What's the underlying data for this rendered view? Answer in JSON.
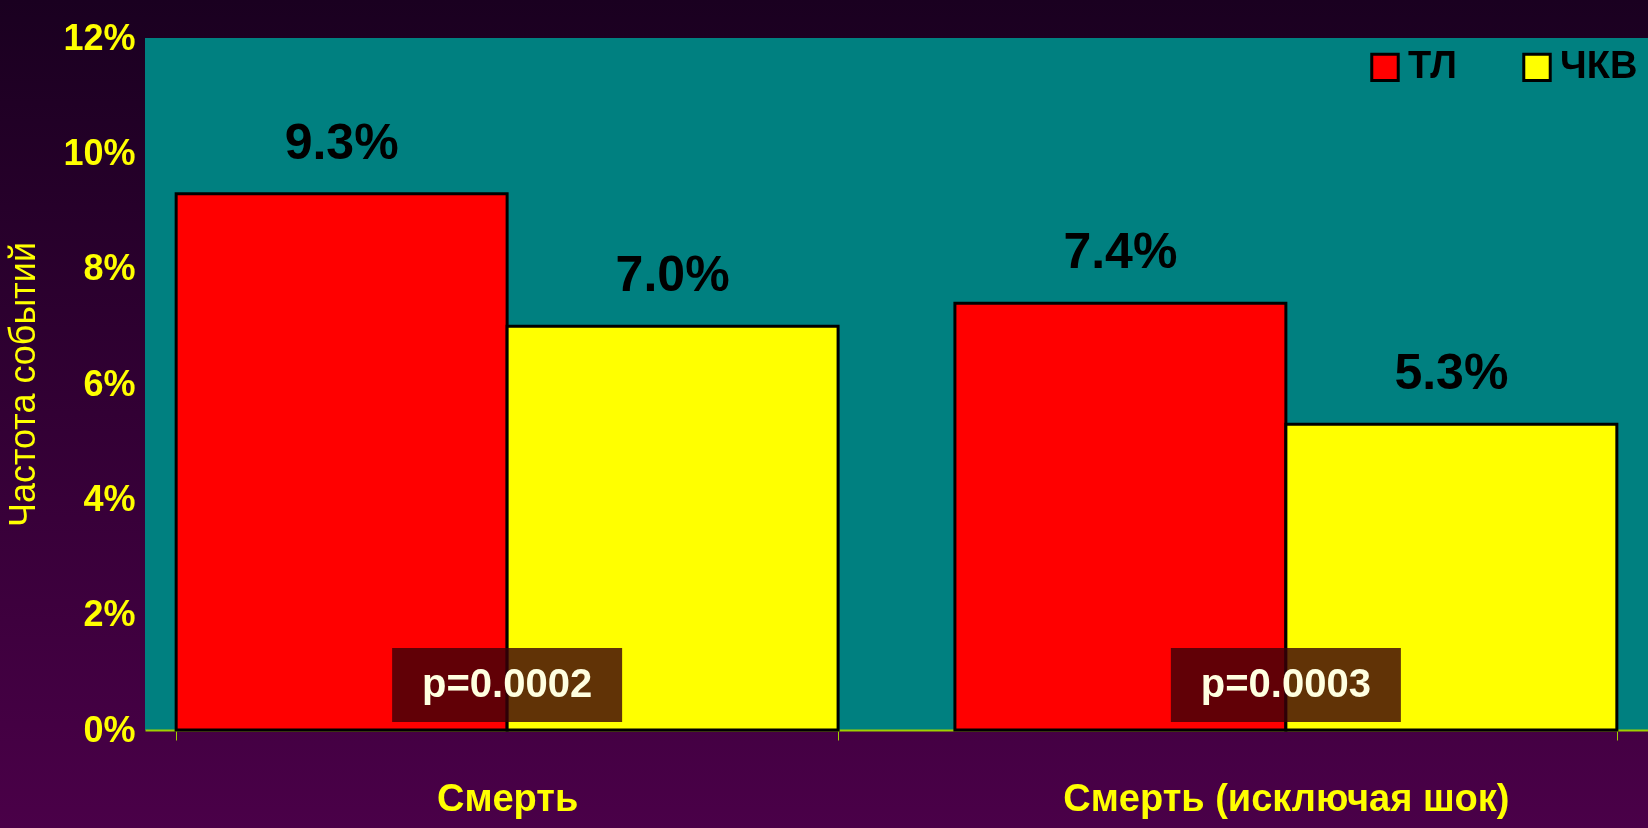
{
  "chart_data": {
    "type": "bar",
    "ylabel": "Частота событий",
    "categories": [
      "Смерть",
      "Смерть (исключая шок)"
    ],
    "series": [
      {
        "name": "ТЛ",
        "color": "#ff0000",
        "values": [
          9.3,
          7.4
        ],
        "value_labels": [
          "9.3%",
          "7.4%"
        ]
      },
      {
        "name": "ЧКВ",
        "color": "#ffff00",
        "values": [
          7.0,
          5.3
        ],
        "value_labels": [
          "7.0%",
          "5.3%"
        ]
      }
    ],
    "ylim": [
      0,
      12
    ],
    "yticks": [
      {
        "value": 0,
        "label": "0%"
      },
      {
        "value": 2,
        "label": "2%"
      },
      {
        "value": 4,
        "label": "4%"
      },
      {
        "value": 6,
        "label": "6%"
      },
      {
        "value": 8,
        "label": "8%"
      },
      {
        "value": 10,
        "label": "10%"
      },
      {
        "value": 12,
        "label": "12%"
      }
    ],
    "annotations": [
      "p=0.0002",
      "p=0.0003"
    ],
    "legend": "top right",
    "grid": false
  }
}
